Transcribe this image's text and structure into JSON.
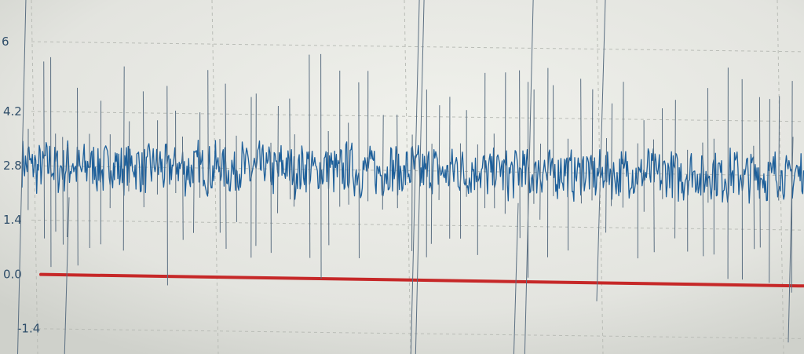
{
  "chart_data": {
    "type": "line",
    "title": "",
    "xlabel": "",
    "ylabel": "",
    "ylim": [
      -2.2,
      7.2
    ],
    "y_ticks": [
      6,
      4.2,
      2.8,
      1.4,
      0.0,
      -1.4
    ],
    "y_tick_labels": [
      "6",
      "4.2",
      "2.8",
      "1.4",
      "0.0",
      "-1.4"
    ],
    "grid": true,
    "series": [
      {
        "color": "#1d5f9a",
        "baseline": 2.8,
        "noise_band": [
          2.2,
          3.5
        ],
        "spike_range": [
          -1.5,
          8.0
        ]
      },
      {
        "color": "#c62828",
        "values": [
          0.0,
          0.0
        ]
      }
    ]
  },
  "colors": {
    "background": "#e8e9e4",
    "grid": "#b9bcb6",
    "signal": "#1d5f9a",
    "reference": "#c62828",
    "axis_text": "#2f4e6a"
  }
}
